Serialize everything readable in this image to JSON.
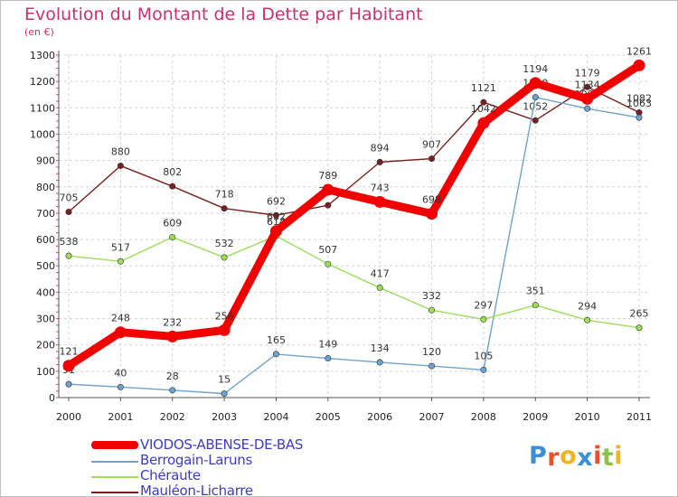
{
  "title": "Evolution du Montant de la Dette par Habitant",
  "subtitle": "(en €)",
  "logo": {
    "letters": [
      "P",
      "r",
      "o",
      "x",
      "i",
      "t",
      "i"
    ],
    "colors": [
      "#3a8fd6",
      "#e8522a",
      "#f2b31f",
      "#3a8fd6",
      "#e8522a",
      "#8bc34a",
      "#f2b31f"
    ]
  },
  "chart_data": {
    "type": "line",
    "x": [
      "2000",
      "2001",
      "2002",
      "2003",
      "2004",
      "2005",
      "2006",
      "2007",
      "2008",
      "2009",
      "2010",
      "2011"
    ],
    "ylim": [
      0,
      1300
    ],
    "yticks": [
      "0",
      "100",
      "200",
      "300",
      "400",
      "500",
      "600",
      "700",
      "800",
      "900",
      "1000",
      "1100",
      "1200",
      "1300"
    ],
    "grid": true,
    "legend_position": "bottom-left",
    "series": [
      {
        "name": "Mauléon-Licharre",
        "color": "#7a1f1f",
        "values": [
          705,
          880,
          802,
          718,
          692,
          730,
          894,
          907,
          1121,
          1052,
          1179,
          1082
        ],
        "labels": [
          "705",
          "880",
          "802",
          "718",
          "692",
          "730",
          "894",
          "907",
          "1121",
          "1052",
          "1179",
          "1082"
        ]
      },
      {
        "name": "Berrogain-Laruns",
        "color": "#6fa3cf",
        "values": [
          51,
          40,
          28,
          15,
          165,
          149,
          134,
          120,
          105,
          1140,
          1097,
          1063
        ],
        "labels": [
          "51",
          "40",
          "28",
          "15",
          "165",
          "149",
          "134",
          "120",
          "105",
          "1140",
          "1097",
          "1063"
        ]
      },
      {
        "name": "Chéraute",
        "color": "#9cde5a",
        "values": [
          538,
          517,
          609,
          532,
          614,
          507,
          417,
          332,
          297,
          351,
          294,
          265
        ],
        "labels": [
          "538",
          "517",
          "609",
          "532",
          "614",
          "507",
          "417",
          "332",
          "297",
          "351",
          "294",
          "265"
        ]
      },
      {
        "name": "VIODOS-ABENSE-DE-BAS",
        "color": "#f20000",
        "values": [
          121,
          248,
          232,
          256,
          632,
          789,
          743,
          698,
          1042,
          1194,
          1134,
          1261
        ],
        "labels": [
          "121",
          "248",
          "232",
          "256",
          "632",
          "789",
          "743",
          "698",
          "1042",
          "1194",
          "1134",
          "1261"
        ]
      }
    ]
  }
}
